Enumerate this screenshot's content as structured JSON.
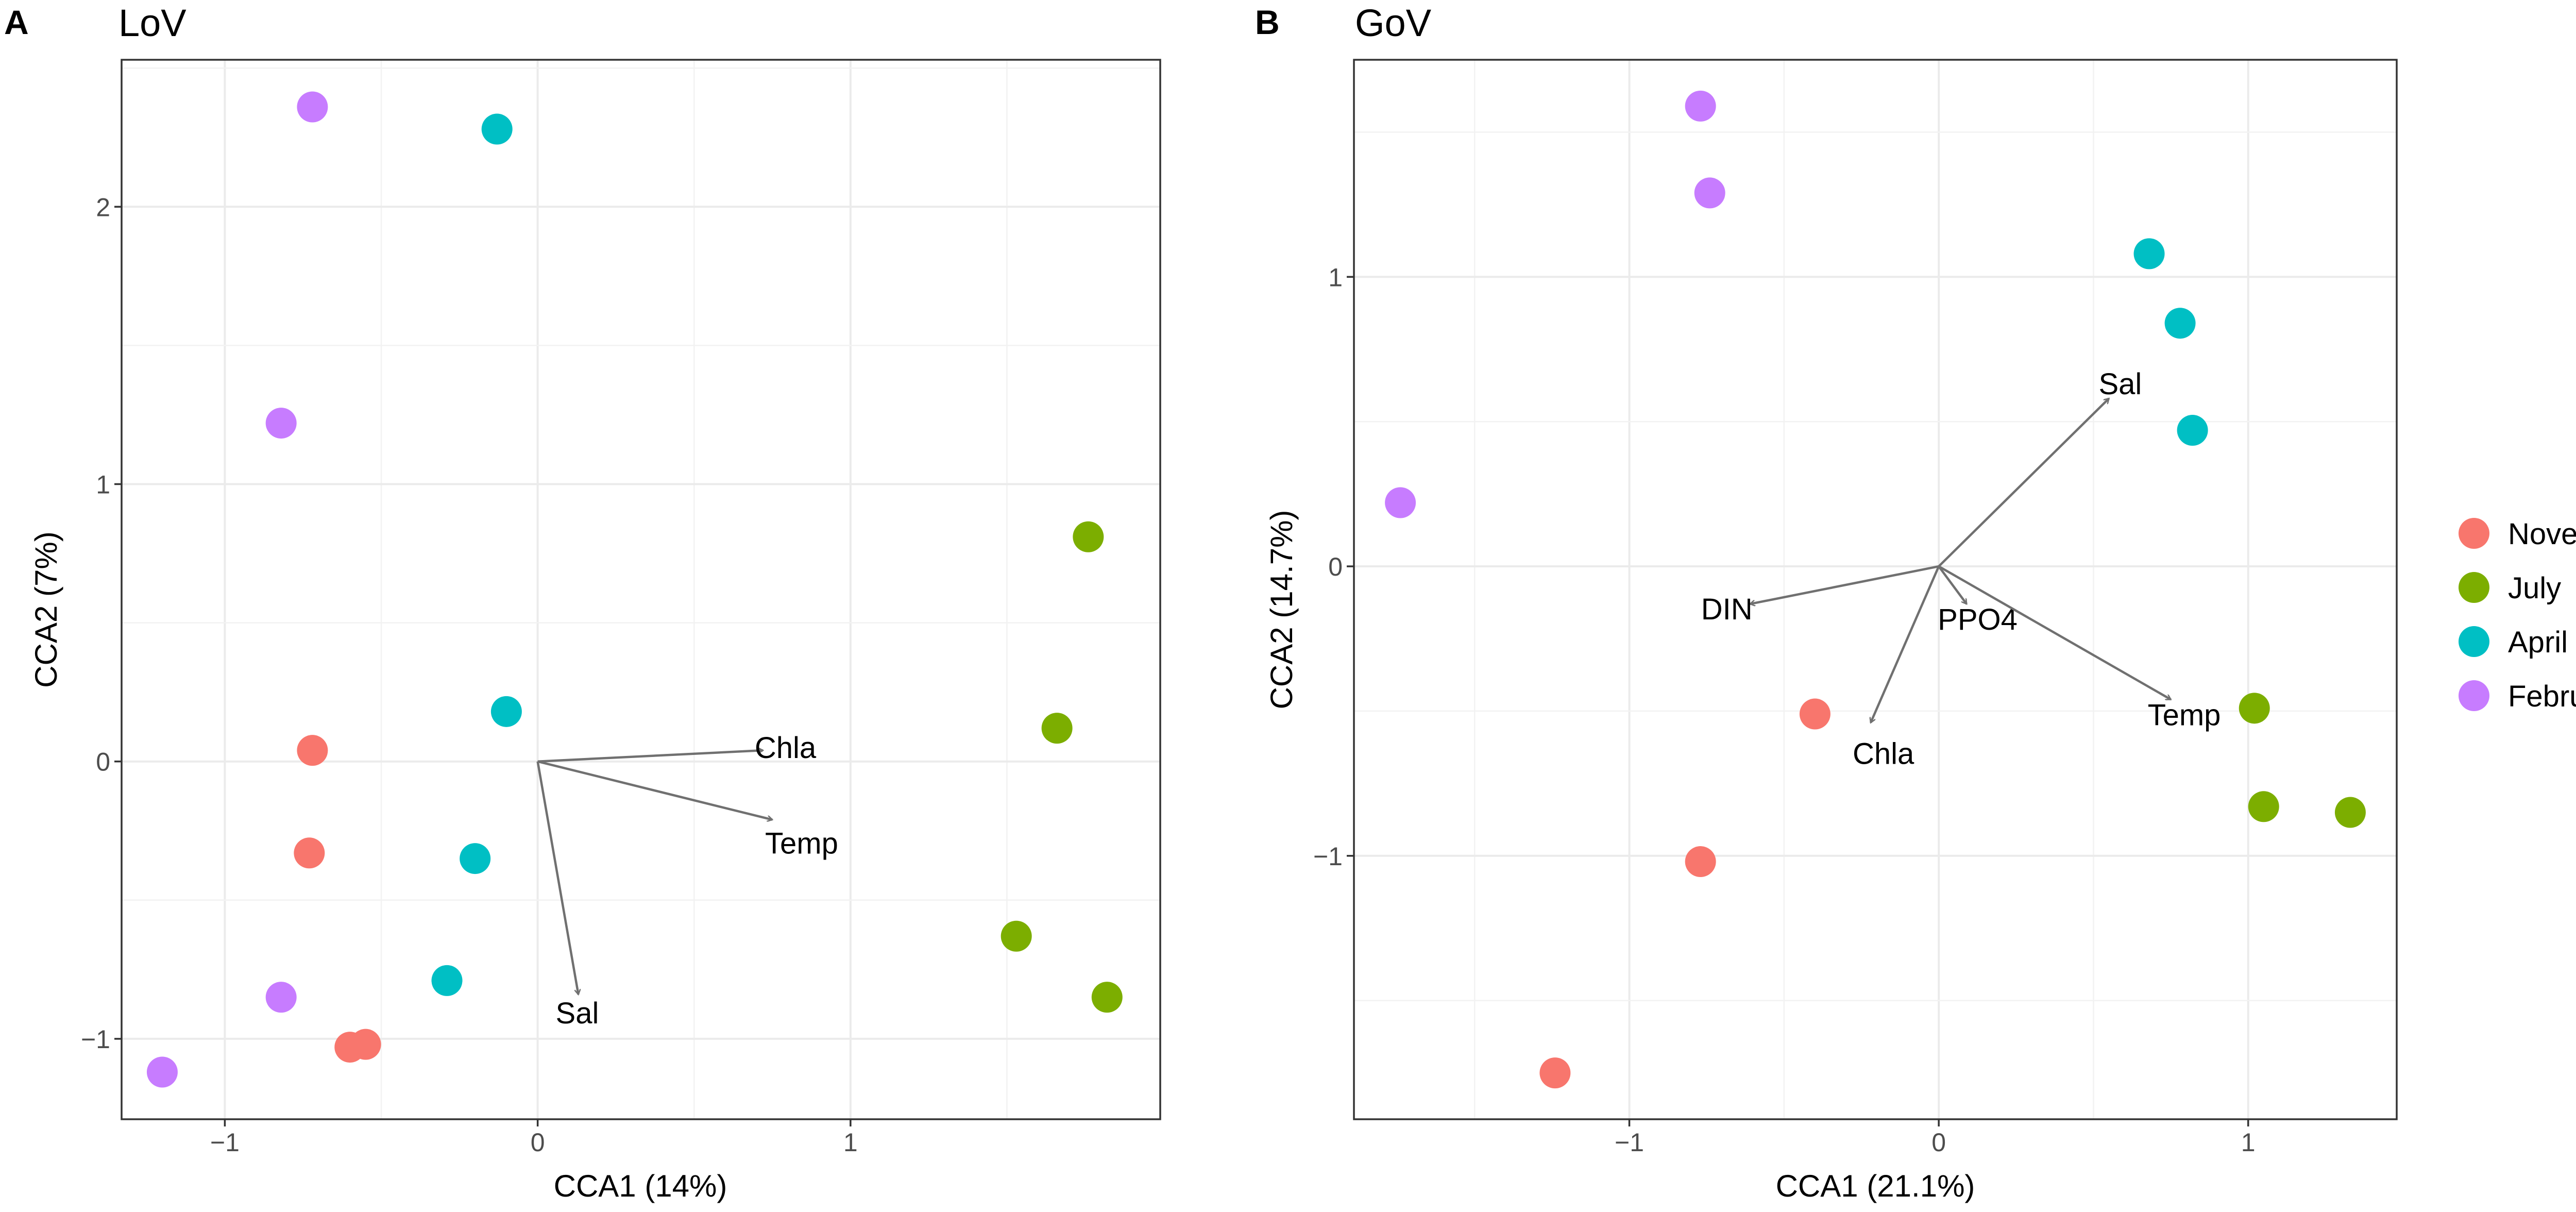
{
  "colors": {
    "November": "#F8766D",
    "July": "#7CAE00",
    "April": "#00BFC4",
    "February": "#C77CFF"
  },
  "legend": {
    "entries": [
      "November",
      "July",
      "April",
      "February"
    ]
  },
  "chart_data": [
    {
      "type": "scatter",
      "panel_label": "A",
      "title": "LoV",
      "xlabel": "CCA1 (14%)",
      "ylabel": "CCA2 (7%)",
      "xlim": [
        -1.33,
        1.99
      ],
      "ylim": [
        -1.29,
        2.53
      ],
      "xticks": [
        -1,
        0,
        1
      ],
      "xtick_labels": [
        "−1",
        "0",
        "1"
      ],
      "yticks": [
        -1,
        0,
        1,
        2
      ],
      "ytick_labels": [
        "−1",
        "0",
        "1",
        "2"
      ],
      "grid": true,
      "legend_position": "right",
      "points": [
        {
          "x": -0.72,
          "y": 2.36,
          "group": "February"
        },
        {
          "x": -0.13,
          "y": 2.28,
          "group": "April"
        },
        {
          "x": -0.82,
          "y": 1.22,
          "group": "February"
        },
        {
          "x": 1.76,
          "y": 0.81,
          "group": "July"
        },
        {
          "x": -0.1,
          "y": 0.18,
          "group": "April"
        },
        {
          "x": -0.72,
          "y": 0.04,
          "group": "November"
        },
        {
          "x": 1.66,
          "y": 0.12,
          "group": "July"
        },
        {
          "x": -0.73,
          "y": -0.33,
          "group": "November"
        },
        {
          "x": -0.2,
          "y": -0.35,
          "group": "April"
        },
        {
          "x": 1.53,
          "y": -0.63,
          "group": "July"
        },
        {
          "x": -0.29,
          "y": -0.79,
          "group": "April"
        },
        {
          "x": -0.82,
          "y": -0.85,
          "group": "February"
        },
        {
          "x": 1.82,
          "y": -0.85,
          "group": "July"
        },
        {
          "x": -0.6,
          "y": -1.03,
          "group": "November"
        },
        {
          "x": -0.55,
          "y": -1.02,
          "group": "November"
        },
        {
          "x": -1.2,
          "y": -1.12,
          "group": "February"
        }
      ],
      "arrows": [
        {
          "label": "Chla",
          "x": 0.72,
          "y": 0.04
        },
        {
          "label": "Temp",
          "x": 0.75,
          "y": -0.21
        },
        {
          "label": "Sal",
          "x": 0.13,
          "y": -0.84
        }
      ]
    },
    {
      "type": "scatter",
      "panel_label": "B",
      "title": "GoV",
      "xlabel": "CCA1 (21.1%)",
      "ylabel": "CCA2 (14.7%)",
      "xlim": [
        -1.89,
        1.48
      ],
      "ylim": [
        -1.91,
        1.75
      ],
      "xticks": [
        -1,
        0,
        1
      ],
      "xtick_labels": [
        "−1",
        "0",
        "1"
      ],
      "yticks": [
        -1,
        0,
        1
      ],
      "ytick_labels": [
        "−1",
        "0",
        "1"
      ],
      "grid": true,
      "legend_position": "right",
      "points": [
        {
          "x": -0.77,
          "y": 1.59,
          "group": "February"
        },
        {
          "x": -0.74,
          "y": 1.29,
          "group": "February"
        },
        {
          "x": 0.68,
          "y": 1.08,
          "group": "April"
        },
        {
          "x": 0.78,
          "y": 0.84,
          "group": "April"
        },
        {
          "x": 0.82,
          "y": 0.47,
          "group": "April"
        },
        {
          "x": -1.74,
          "y": 0.22,
          "group": "February"
        },
        {
          "x": -0.4,
          "y": -0.51,
          "group": "November"
        },
        {
          "x": 1.02,
          "y": -0.49,
          "group": "July"
        },
        {
          "x": 1.05,
          "y": -0.83,
          "group": "July"
        },
        {
          "x": 1.33,
          "y": -0.85,
          "group": "July"
        },
        {
          "x": -0.77,
          "y": -1.02,
          "group": "November"
        },
        {
          "x": -1.24,
          "y": -1.75,
          "group": "November"
        }
      ],
      "arrows": [
        {
          "label": "Sal",
          "x": 0.55,
          "y": 0.58
        },
        {
          "label": "DIN",
          "x": -0.61,
          "y": -0.13
        },
        {
          "label": "PPO4",
          "x": 0.09,
          "y": -0.13
        },
        {
          "label": "Chla",
          "x": -0.22,
          "y": -0.54
        },
        {
          "label": "Temp",
          "x": 0.75,
          "y": -0.46
        }
      ]
    }
  ]
}
